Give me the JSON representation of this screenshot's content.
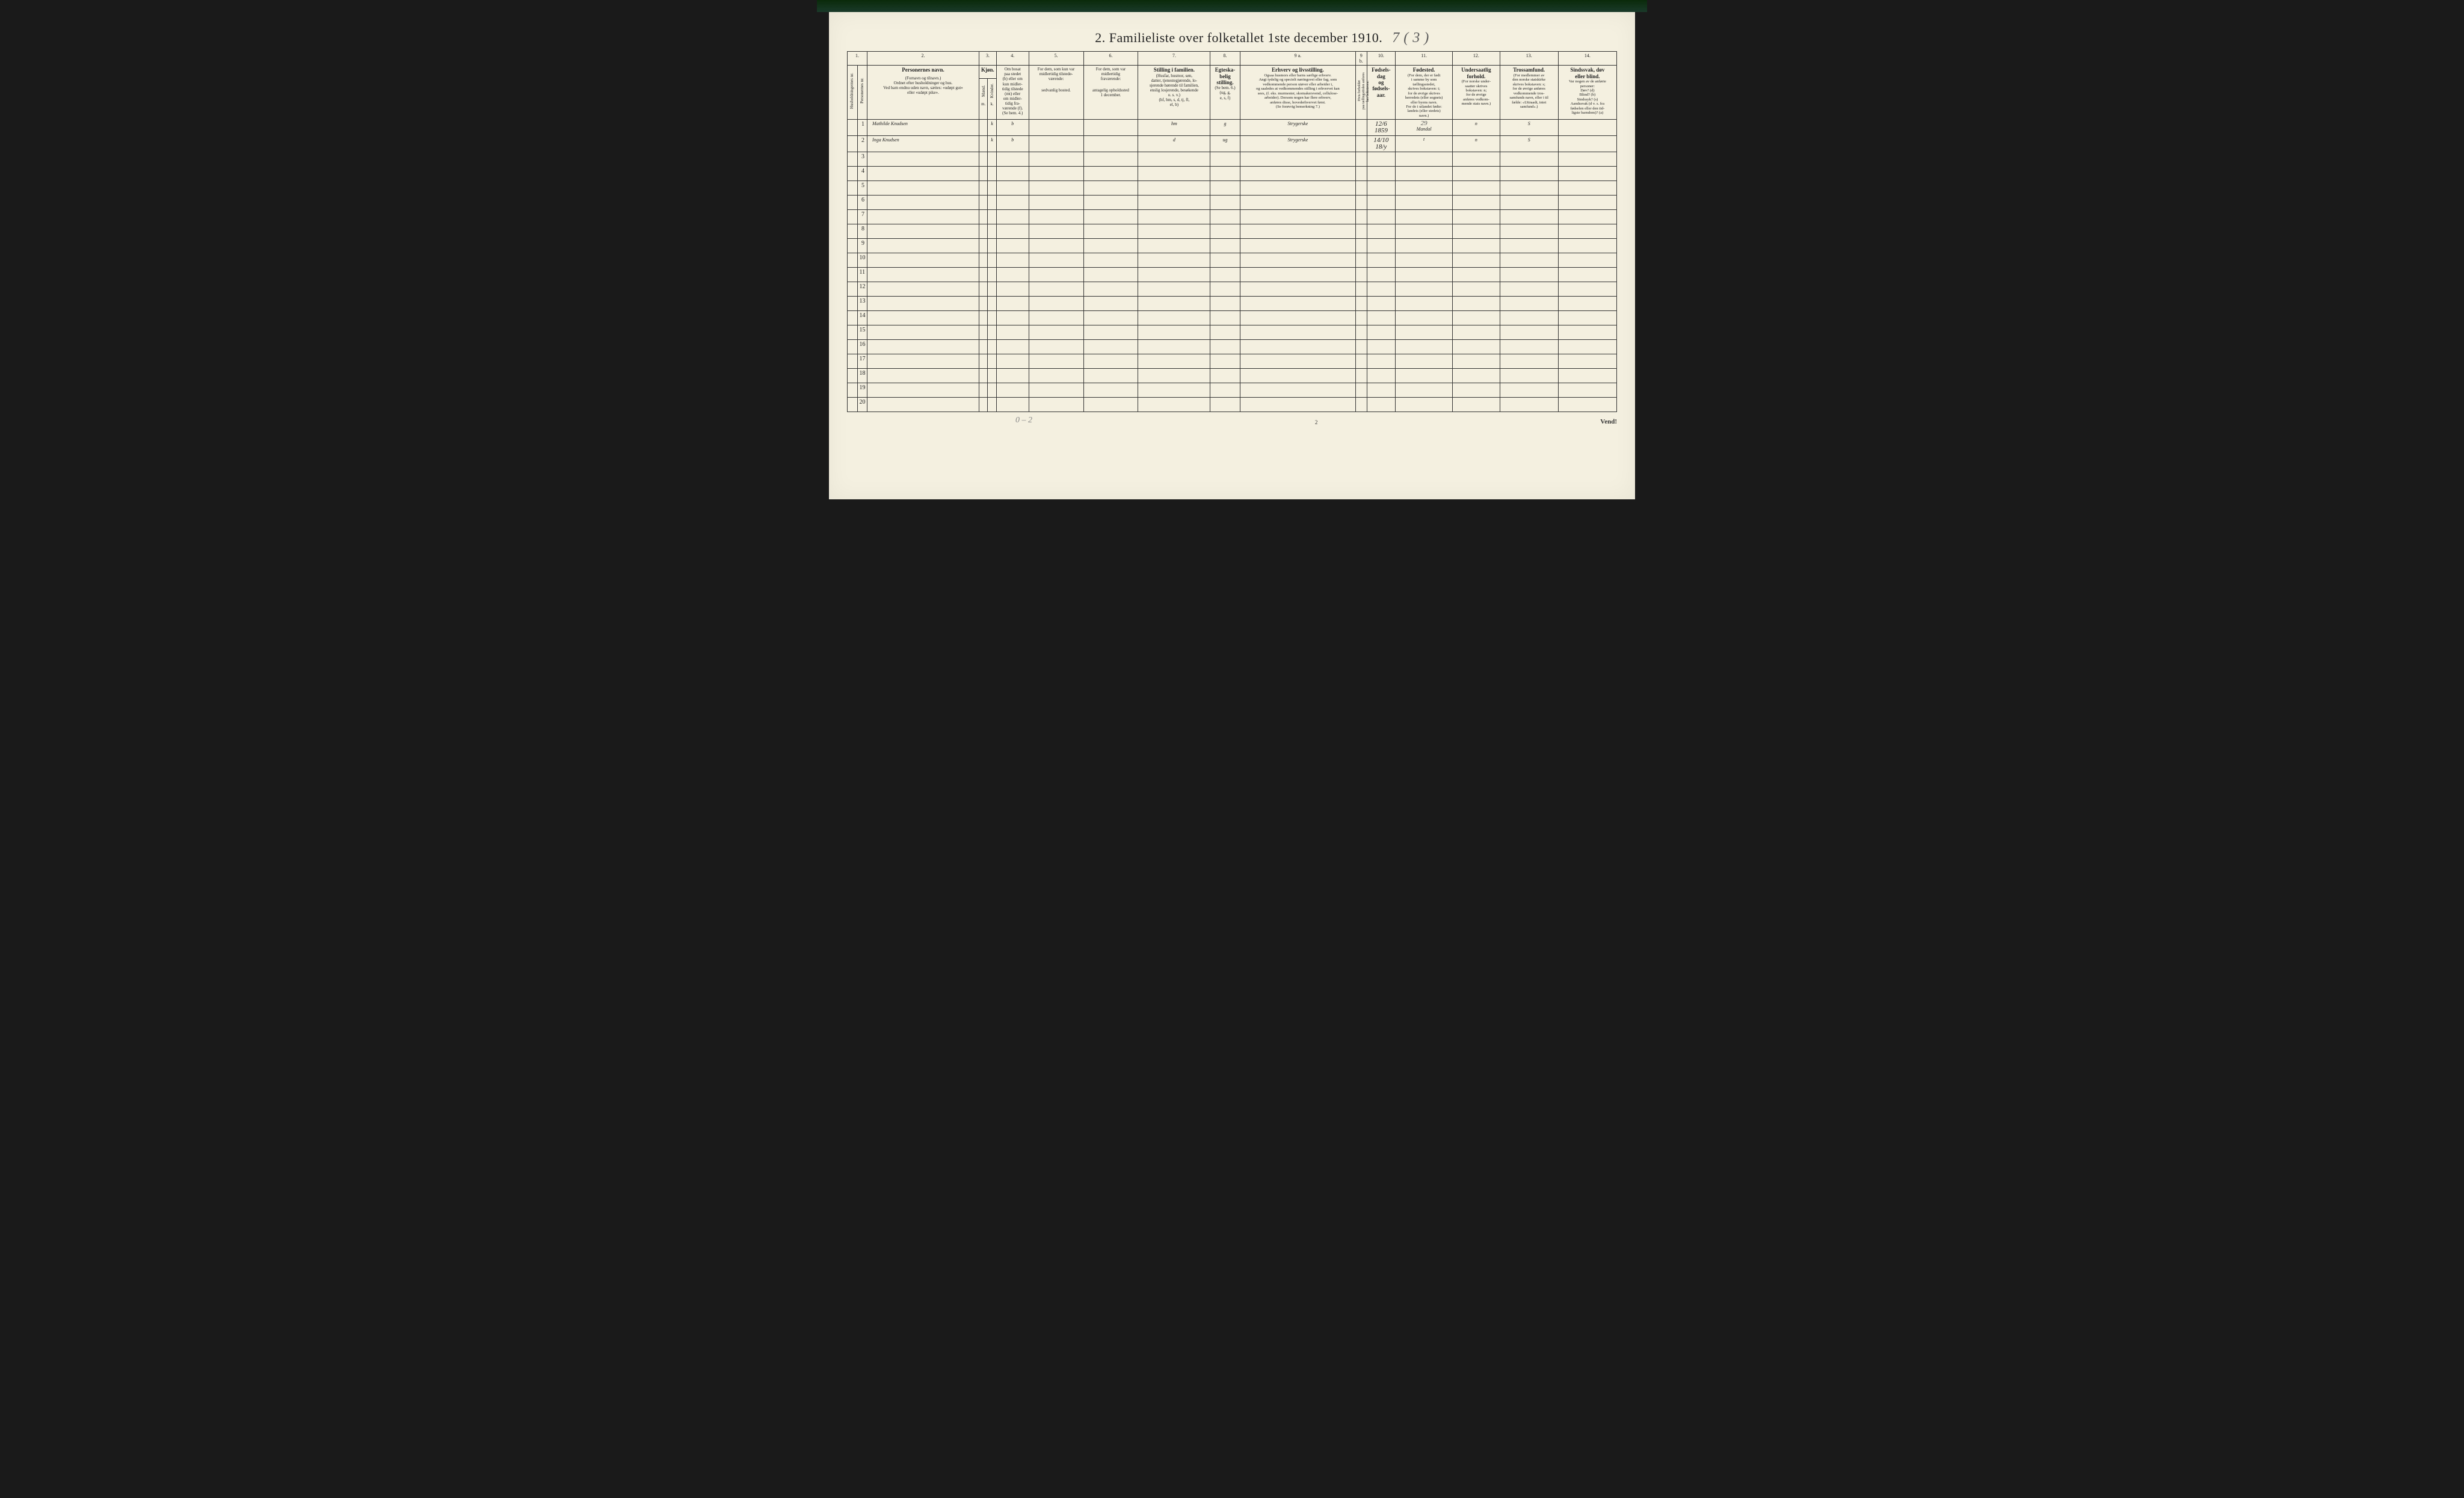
{
  "title": {
    "number": "2.",
    "text": "Familieliste over folketallet 1ste december 1910.",
    "handwritten": "7 ( 3 )"
  },
  "columns": {
    "c1": {
      "num": "1.",
      "h": "Husholdningernes nr."
    },
    "c1b": {
      "h": "Personernes nr."
    },
    "c2": {
      "num": "2.",
      "h": "Personernes navn.",
      "sub": "(Fornavn og tilnavn.)\nOrdnet efter husholdninger og hus.\nVed barn endnu uden navn, sættes: «udøpt gut»\neller «udøpt pike»."
    },
    "c3": {
      "num": "3.",
      "h": "Kjøn.",
      "m": "Mænd.",
      "k": "Kvinder.",
      "mk": "m.",
      "kk": "k."
    },
    "c4": {
      "num": "4.",
      "h": "Om bosat\npaa stedet\n(b) eller om\nkun midler-\ntidig tilstede\n(mt) eller\nom midler-\ntidig fra-\nværende (f).\n(Se bem. 4.)"
    },
    "c5": {
      "num": "5.",
      "h": "For dem, som kun var\nmidlertidig tilstede-\nværende:",
      "sub": "sedvanlig bosted."
    },
    "c6": {
      "num": "6.",
      "h": "For dem, som var\nmidlertidig\nfraværende:",
      "sub": "antagelig opholdssted\n1 december."
    },
    "c7": {
      "num": "7.",
      "h": "Stilling i familien.",
      "sub": "(Husfar, husmor, søn,\ndatter, tjenestegjørende, lo-\nsjerende hørende til familien,\nenslig losjerende, besøkende\no. s. v.)\n(hf, hm, s, d, tj, fl,\nel, b)"
    },
    "c8": {
      "num": "8.",
      "h": "Egteska-\nbelig\nstilling.",
      "sub": "(Se bem. 6.)\n(ug, g,\ne, s, f)"
    },
    "c9a": {
      "num": "9 a.",
      "h": "Erhverv og livsstilling.",
      "sub": "Ogsaa husmors eller barns særlige erhverv.\nAngi tydelig og specielt næringsvei eller fag, som\nvedkommende person utøver eller arbeider i,\nog saaledes at vedkommendes stilling i erhvervet kan\nsees, (f. eks. murmester, skomakersvend, cellulose-\narbeider). Dersom nogen har flere erhverv,\nanføres disse, hovederhvervet først.\n(Se forøvrig bemerkning 7.)"
    },
    "c9b": {
      "num": "9 b.",
      "h": "Hvis forholdet\npaa tællingsitiden anfores\nher bokstaven:"
    },
    "c10": {
      "num": "10.",
      "h": "Fødsels-\ndag\nog\nfødsels-\naar."
    },
    "c11": {
      "num": "11.",
      "h": "Fødested.",
      "sub": "(For dem, der er født\ni samme by som\ntællingsstedet,\nskrives bokstaven: t;\nfor de øvrige skrives\nherredets (eller sognets)\neller byens navn.\nFor de i utlandet fødte:\nlandets (eller stedets)\nnavn.)"
    },
    "c12": {
      "num": "12.",
      "h": "Undersaatlig\nforhold.",
      "sub": "(For norske under-\nsaatter skrives\nbokstaven: n;\nfor de øvrige\nanføres vedkom-\nmende stats navn.)"
    },
    "c13": {
      "num": "13.",
      "h": "Trossamfund.",
      "sub": "(For medlemmer av\nden norske statskirke\nskrives bokstaven: s;\nfor de øvrige anføres\nvedkommende tros-\nsamfunds navn, eller i til\nfælde: «Uttraadt, intet\nsamfund».)"
    },
    "c14": {
      "num": "14.",
      "h": "Sindssvak, døv\neller blind.",
      "sub": "Var nogen av de anførte\npersoner:\nDøv?      (d)\nBlind?    (b)\nSindssyk? (s)\nAandssvak (d v. s. fra\nfødselen eller den tid-\nligste barndom)? (a)"
    }
  },
  "rows": [
    {
      "num": "1",
      "name": "Mathilde Knudsen",
      "sex_k": "k",
      "bosat": "b",
      "c5": "",
      "c6": "",
      "stilling": "hm",
      "egt": "g",
      "erhverv": "Strygerske",
      "c9b": "",
      "fodsel": "12/6\n1859",
      "fodested_top": "29",
      "fodested": "Mandal",
      "under": "n",
      "tros": "S",
      "c14": ""
    },
    {
      "num": "2",
      "name": "Inga Knudsen",
      "sex_k": "k",
      "bosat": "b",
      "c5": "",
      "c6": "",
      "stilling": "d",
      "egt": "ug",
      "erhverv": "Strygerske",
      "c9b": "",
      "fodsel": "14/10\n18/y",
      "fodested_top": "",
      "fodested": "t",
      "under": "n",
      "tros": "S",
      "c14": ""
    },
    {
      "num": "3"
    },
    {
      "num": "4"
    },
    {
      "num": "5"
    },
    {
      "num": "6"
    },
    {
      "num": "7"
    },
    {
      "num": "8"
    },
    {
      "num": "9"
    },
    {
      "num": "10"
    },
    {
      "num": "11"
    },
    {
      "num": "12"
    },
    {
      "num": "13"
    },
    {
      "num": "14"
    },
    {
      "num": "15"
    },
    {
      "num": "16"
    },
    {
      "num": "17"
    },
    {
      "num": "18"
    },
    {
      "num": "19"
    },
    {
      "num": "20"
    }
  ],
  "footer": {
    "handwritten": "0 – 2",
    "pagenum": "2",
    "vend": "Vend!"
  },
  "colwidths": {
    "c1": 16,
    "c1b": 16,
    "c2": 180,
    "c3m": 14,
    "c3k": 14,
    "c4": 52,
    "c5": 88,
    "c6": 88,
    "c7": 116,
    "c8": 48,
    "c9a": 186,
    "c9b": 18,
    "c10": 46,
    "c11": 92,
    "c12": 76,
    "c13": 94,
    "c14": 94
  },
  "colors": {
    "paper": "#f4f0e0",
    "ink": "#222222",
    "handwriting": "#5a5a5a",
    "border": "#333333"
  }
}
